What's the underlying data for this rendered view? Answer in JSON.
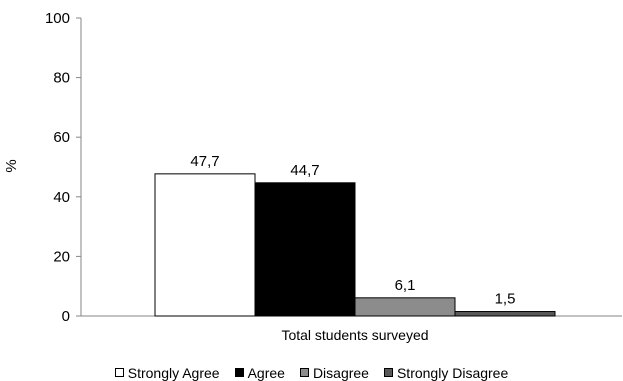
{
  "chart_data": {
    "type": "bar",
    "categories": [
      "Total students surveyed"
    ],
    "xlabel": "Total students surveyed",
    "ylabel": "%",
    "ylim": [
      0,
      100
    ],
    "yticks": [
      "0",
      "20",
      "40",
      "60",
      "80",
      "100"
    ],
    "grid": false,
    "legend_position": "bottom",
    "series": [
      {
        "name": "Strongly Agree",
        "values": [
          47.7
        ],
        "label": "47,7",
        "color": "#ffffff"
      },
      {
        "name": "Agree",
        "values": [
          44.7
        ],
        "label": "44,7",
        "color": "#000000"
      },
      {
        "name": "Disagree",
        "values": [
          6.1
        ],
        "label": "6,1",
        "color": "#8c8c8c"
      },
      {
        "name": "Strongly Disagree",
        "values": [
          1.5
        ],
        "label": "1,5",
        "color": "#595959"
      }
    ]
  }
}
